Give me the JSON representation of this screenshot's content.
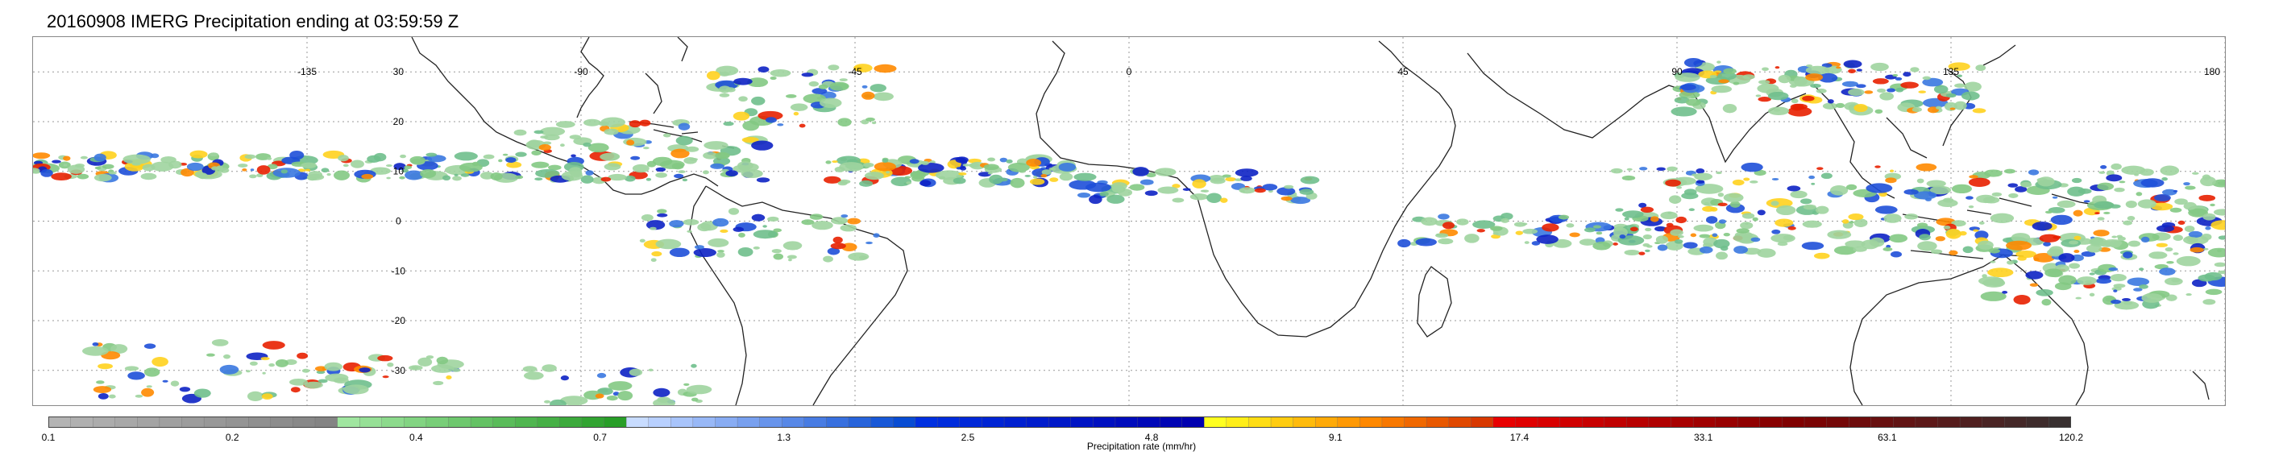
{
  "title": "20160908 IMERG Precipitation ending at 03:59:59 Z",
  "map": {
    "lon_labels": [
      "-135",
      "-90",
      "-45",
      "0",
      "45",
      "90",
      "135",
      "180"
    ],
    "lat_labels": [
      "30",
      "20",
      "10",
      "0",
      "-10",
      "-20",
      "-30"
    ],
    "lon_range": [
      -180,
      180
    ],
    "lat_range": [
      -37,
      37
    ],
    "gridlines": true
  },
  "colorbar": {
    "title": "Precipitation rate (mm/hr)",
    "tick_labels": [
      "0.1",
      "0.2",
      "0.4",
      "0.7",
      "1.3",
      "2.5",
      "4.8",
      "9.1",
      "17.4",
      "33.1",
      "63.1",
      "120.2"
    ],
    "colors": [
      "#b4b4b4",
      "#b0b0b0",
      "#acacac",
      "#a8a8a8",
      "#a4a4a4",
      "#a0a0a0",
      "#9c9c9c",
      "#989898",
      "#949494",
      "#909090",
      "#8c8c8c",
      "#888888",
      "#848484",
      "#a0e6a0",
      "#96e096",
      "#8cda8c",
      "#82d482",
      "#78ce78",
      "#6ec86e",
      "#64c264",
      "#5abc5a",
      "#50b650",
      "#46b046",
      "#3caa3c",
      "#32a432",
      "#289e28",
      "#c8dcff",
      "#b8d0ff",
      "#a8c4fb",
      "#98b8f7",
      "#88acf3",
      "#78a0ef",
      "#6894eb",
      "#5888e7",
      "#487ce3",
      "#3870df",
      "#2864db",
      "#1858d7",
      "#084cd3",
      "#0030e0",
      "#002cdc",
      "#0028d8",
      "#0024d4",
      "#0020d0",
      "#001ccc",
      "#0018c8",
      "#0014c4",
      "#0010c0",
      "#000cbc",
      "#0008b8",
      "#0004b4",
      "#0000b0",
      "#ffff20",
      "#ffee18",
      "#ffdd14",
      "#ffcc10",
      "#ffbb0c",
      "#ffaa08",
      "#ff9904",
      "#ff8800",
      "#f87800",
      "#f06800",
      "#e85800",
      "#e04800",
      "#d83800",
      "#e80000",
      "#e00000",
      "#d80000",
      "#d00000",
      "#c80000",
      "#c00000",
      "#b80000",
      "#b00000",
      "#a80000",
      "#a00000",
      "#980000",
      "#900000",
      "#880000",
      "#800000",
      "#7a0404",
      "#740808",
      "#6e0c0c",
      "#681010",
      "#621414",
      "#5c1818",
      "#561c1c",
      "#502020",
      "#4a2424",
      "#442828",
      "#3e2c2c",
      "#383030"
    ]
  }
}
